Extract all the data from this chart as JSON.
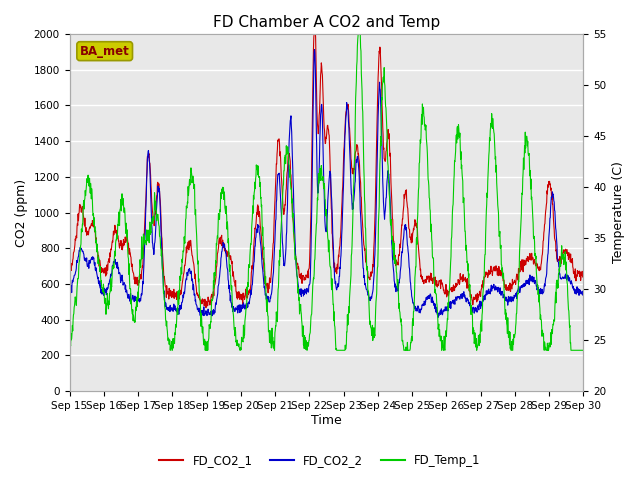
{
  "title": "FD Chamber A CO2 and Temp",
  "xlabel": "Time",
  "ylabel_left": "CO2 (ppm)",
  "ylabel_right": "Temperature (C)",
  "legend_label": "BA_met",
  "series_labels": [
    "FD_CO2_1",
    "FD_CO2_2",
    "FD_Temp_1"
  ],
  "series_colors": [
    "#cc0000",
    "#0000cc",
    "#00cc00"
  ],
  "ylim_left": [
    0,
    2000
  ],
  "ylim_right": [
    20,
    55
  ],
  "yticks_left": [
    0,
    200,
    400,
    600,
    800,
    1000,
    1200,
    1400,
    1600,
    1800,
    2000
  ],
  "yticks_right": [
    20,
    25,
    30,
    35,
    40,
    45,
    50,
    55
  ],
  "xtick_labels": [
    "Sep 15",
    "Sep 16",
    "Sep 17",
    "Sep 18",
    "Sep 19",
    "Sep 20",
    "Sep 21",
    "Sep 22",
    "Sep 23",
    "Sep 24",
    "Sep 25",
    "Sep 26",
    "Sep 27",
    "Sep 28",
    "Sep 29",
    "Sep 30"
  ],
  "background_color": "#e8e8e8",
  "grid_color": "#ffffff",
  "title_fontsize": 11,
  "axis_fontsize": 9,
  "tick_fontsize": 7.5,
  "legend_box_facecolor": "#cccc00",
  "legend_box_edgecolor": "#999900",
  "legend_text_color": "#880000"
}
